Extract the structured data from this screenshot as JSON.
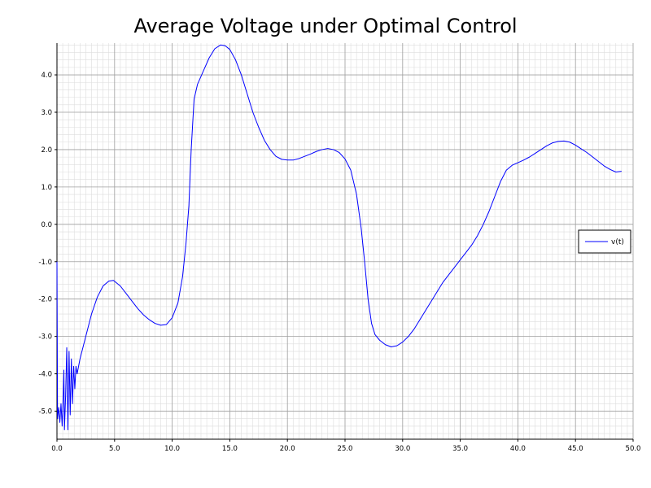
{
  "chart_data": {
    "type": "line",
    "title": "Average Voltage under Optimal Control",
    "xlabel": "",
    "ylabel": "",
    "xlim": [
      0,
      50
    ],
    "ylim": [
      -5.75,
      4.85
    ],
    "grid": true,
    "legend_position": "right",
    "x_ticks": [
      "0.0",
      "5.0",
      "10.0",
      "15.0",
      "20.0",
      "25.0",
      "30.0",
      "35.0",
      "40.0",
      "45.0",
      "50.0"
    ],
    "y_ticks": [
      "4.0",
      "3.0",
      "2.0",
      "1.0",
      "0.0",
      "-1.0",
      "-2.0",
      "-3.0",
      "-4.0",
      "-5.0"
    ],
    "colors": {
      "series": "#0000ff",
      "major_grid": "#a0a0a0",
      "minor_grid": "#dddddd"
    },
    "series": [
      {
        "name": "v(t)",
        "points": [
          [
            0.0,
            -1.0
          ],
          [
            0.05,
            -5.2
          ],
          [
            0.15,
            -4.9
          ],
          [
            0.25,
            -5.3
          ],
          [
            0.35,
            -4.8
          ],
          [
            0.45,
            -5.4
          ],
          [
            0.55,
            -4.5
          ],
          [
            0.6,
            -3.9
          ],
          [
            0.65,
            -5.5
          ],
          [
            0.75,
            -4.6
          ],
          [
            0.85,
            -3.3
          ],
          [
            0.95,
            -5.5
          ],
          [
            1.05,
            -3.4
          ],
          [
            1.15,
            -5.1
          ],
          [
            1.25,
            -3.6
          ],
          [
            1.35,
            -4.8
          ],
          [
            1.45,
            -3.8
          ],
          [
            1.55,
            -4.4
          ],
          [
            1.65,
            -3.8
          ],
          [
            1.75,
            -4.0
          ],
          [
            2.0,
            -3.6
          ],
          [
            2.5,
            -3.0
          ],
          [
            3.0,
            -2.4
          ],
          [
            3.5,
            -1.95
          ],
          [
            4.0,
            -1.65
          ],
          [
            4.5,
            -1.52
          ],
          [
            4.9,
            -1.5
          ],
          [
            5.5,
            -1.65
          ],
          [
            6.0,
            -1.85
          ],
          [
            6.5,
            -2.05
          ],
          [
            7.0,
            -2.25
          ],
          [
            7.5,
            -2.42
          ],
          [
            8.0,
            -2.55
          ],
          [
            8.5,
            -2.65
          ],
          [
            9.0,
            -2.7
          ],
          [
            9.5,
            -2.68
          ],
          [
            10.0,
            -2.5
          ],
          [
            10.5,
            -2.1
          ],
          [
            10.9,
            -1.4
          ],
          [
            11.2,
            -0.5
          ],
          [
            11.45,
            0.5
          ],
          [
            11.65,
            2.0
          ],
          [
            11.9,
            3.35
          ],
          [
            12.2,
            3.75
          ],
          [
            12.7,
            4.1
          ],
          [
            13.2,
            4.45
          ],
          [
            13.7,
            4.7
          ],
          [
            14.2,
            4.8
          ],
          [
            14.6,
            4.78
          ],
          [
            15.0,
            4.68
          ],
          [
            15.5,
            4.4
          ],
          [
            16.0,
            4.0
          ],
          [
            16.5,
            3.5
          ],
          [
            17.0,
            3.0
          ],
          [
            17.5,
            2.6
          ],
          [
            18.0,
            2.25
          ],
          [
            18.5,
            2.0
          ],
          [
            19.0,
            1.82
          ],
          [
            19.5,
            1.74
          ],
          [
            20.0,
            1.72
          ],
          [
            20.5,
            1.72
          ],
          [
            21.0,
            1.76
          ],
          [
            21.5,
            1.82
          ],
          [
            22.0,
            1.88
          ],
          [
            22.5,
            1.95
          ],
          [
            23.0,
            2.0
          ],
          [
            23.5,
            2.03
          ],
          [
            24.0,
            2.0
          ],
          [
            24.5,
            1.92
          ],
          [
            25.0,
            1.75
          ],
          [
            25.5,
            1.45
          ],
          [
            26.0,
            0.8
          ],
          [
            26.4,
            -0.1
          ],
          [
            26.7,
            -1.0
          ],
          [
            27.0,
            -2.0
          ],
          [
            27.3,
            -2.65
          ],
          [
            27.6,
            -2.95
          ],
          [
            28.0,
            -3.1
          ],
          [
            28.5,
            -3.22
          ],
          [
            29.0,
            -3.28
          ],
          [
            29.5,
            -3.25
          ],
          [
            30.0,
            -3.15
          ],
          [
            30.5,
            -3.0
          ],
          [
            31.0,
            -2.8
          ],
          [
            31.5,
            -2.55
          ],
          [
            32.0,
            -2.3
          ],
          [
            32.5,
            -2.05
          ],
          [
            33.0,
            -1.8
          ],
          [
            33.5,
            -1.55
          ],
          [
            34.0,
            -1.35
          ],
          [
            34.5,
            -1.15
          ],
          [
            35.0,
            -0.95
          ],
          [
            35.5,
            -0.75
          ],
          [
            36.0,
            -0.55
          ],
          [
            36.5,
            -0.3
          ],
          [
            37.0,
            0.0
          ],
          [
            37.5,
            0.35
          ],
          [
            38.0,
            0.75
          ],
          [
            38.5,
            1.15
          ],
          [
            39.0,
            1.45
          ],
          [
            39.5,
            1.58
          ],
          [
            40.0,
            1.65
          ],
          [
            40.5,
            1.72
          ],
          [
            41.0,
            1.8
          ],
          [
            41.5,
            1.9
          ],
          [
            42.0,
            2.0
          ],
          [
            42.5,
            2.1
          ],
          [
            43.0,
            2.18
          ],
          [
            43.5,
            2.22
          ],
          [
            44.0,
            2.23
          ],
          [
            44.5,
            2.2
          ],
          [
            45.0,
            2.12
          ],
          [
            45.5,
            2.02
          ],
          [
            46.0,
            1.92
          ],
          [
            46.5,
            1.8
          ],
          [
            47.0,
            1.68
          ],
          [
            47.5,
            1.56
          ],
          [
            48.0,
            1.47
          ],
          [
            48.5,
            1.4
          ],
          [
            49.0,
            1.42
          ]
        ]
      }
    ]
  }
}
